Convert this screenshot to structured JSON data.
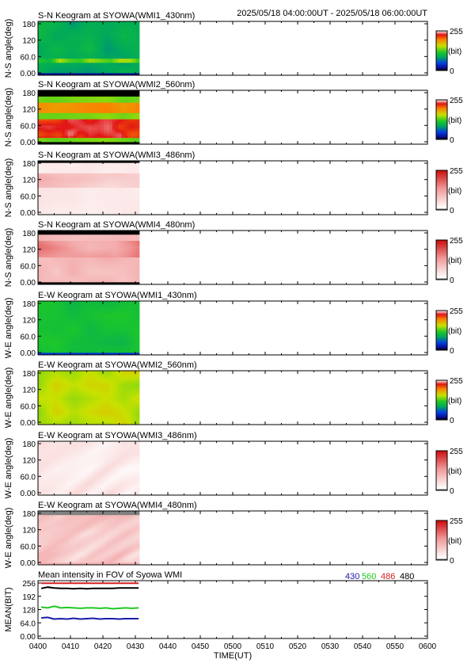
{
  "header": {
    "time_range": "2025/05/18 04:00:00UT - 2025/05/18 06:00:00UT"
  },
  "colorbar": {
    "max_label": "255",
    "unit_label": "(bit)",
    "min_label": "0"
  },
  "keograms": [
    {
      "title": "S-N Keogram at SYOWA(WMI1_430nm)",
      "ylabel": "N-S angle(deg)",
      "palette": "rainbow",
      "profile": "sn430"
    },
    {
      "title": "S-N Keogram at SYOWA(WMI2_560nm)",
      "ylabel": "N-S angle(deg)",
      "palette": "rainbow",
      "profile": "sn560"
    },
    {
      "title": "S-N Keogram at SYOWA(WMI3_486nm)",
      "ylabel": "N-S angle(deg)",
      "palette": "white_red",
      "profile": "sn486"
    },
    {
      "title": "S-N Keogram at SYOWA(WMI4_480nm)",
      "ylabel": "N-S angle(deg)",
      "palette": "white_red",
      "profile": "sn480"
    },
    {
      "title": "E-W Keogram at SYOWA(WMI1_430nm)",
      "ylabel": "W-E angle(deg)",
      "palette": "rainbow",
      "profile": "ew430"
    },
    {
      "title": "E-W Keogram at SYOWA(WMI2_560nm)",
      "ylabel": "W-E angle(deg)",
      "palette": "rainbow",
      "profile": "ew560"
    },
    {
      "title": "E-W Keogram at SYOWA(WMI3_486nm)",
      "ylabel": "W-E angle(deg)",
      "palette": "white_red",
      "profile": "ew486"
    },
    {
      "title": "E-W Keogram at SYOWA(WMI4_480nm)",
      "ylabel": "W-E angle(deg)",
      "palette": "white_red",
      "profile": "ew480"
    }
  ],
  "keogram_yticks": [
    "180",
    "120",
    "60.0",
    "0.00"
  ],
  "chart_data": {
    "type": "line",
    "title": "Mean intensity in FOV of Syowa WMI",
    "xlabel": "TIME(UT)",
    "ylabel": "MEAN(BIT)",
    "x_ticks": [
      "0400",
      "0410",
      "0420",
      "0430",
      "0440",
      "0450",
      "0500",
      "0510",
      "0520",
      "0530",
      "0540",
      "0550",
      "0600"
    ],
    "y_ticks": [
      "256",
      "192",
      "128",
      "64.0",
      "0.00"
    ],
    "ylim": [
      0,
      256
    ],
    "xlim_minutes_after_0400": [
      0,
      120
    ],
    "data_end_minutes_after_0400": 31,
    "series": [
      {
        "name": "430",
        "color": "#1a1aa8",
        "x": [
          1,
          3,
          5,
          7,
          9,
          11,
          13,
          15,
          17,
          19,
          21,
          23,
          25,
          27,
          29,
          31
        ],
        "values": [
          88,
          90,
          82,
          84,
          82,
          86,
          82,
          84,
          86,
          82,
          84,
          84,
          82,
          84,
          84,
          84
        ]
      },
      {
        "name": "560",
        "color": "#1ec81e",
        "x": [
          1,
          3,
          5,
          7,
          9,
          11,
          13,
          15,
          17,
          19,
          21,
          23,
          25,
          27,
          29,
          31
        ],
        "values": [
          140,
          136,
          144,
          136,
          138,
          136,
          134,
          136,
          136,
          134,
          136,
          132,
          134,
          136,
          134,
          136
        ]
      },
      {
        "name": "486",
        "color": "#d42020",
        "x": [
          1,
          3,
          5,
          7,
          9,
          11,
          13,
          15,
          17,
          19,
          21,
          23,
          25,
          27,
          29,
          31
        ],
        "values": [
          255,
          255,
          255,
          255,
          255,
          255,
          255,
          255,
          255,
          255,
          255,
          255,
          255,
          255,
          255,
          255
        ]
      },
      {
        "name": "480",
        "color": "#000000",
        "x": [
          1,
          3,
          5,
          7,
          9,
          11,
          13,
          15,
          17,
          19,
          21,
          23,
          25,
          27,
          29,
          31
        ],
        "values": [
          230,
          236,
          232,
          230,
          230,
          228,
          230,
          228,
          230,
          230,
          230,
          230,
          232,
          232,
          232,
          232
        ]
      }
    ]
  }
}
